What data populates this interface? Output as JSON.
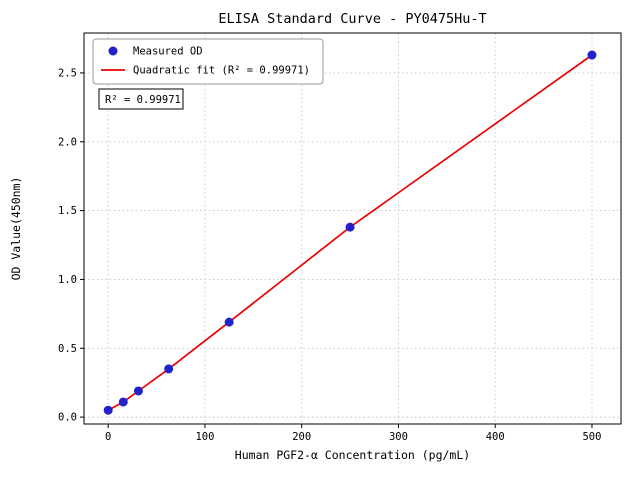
{
  "figure": {
    "name": "ELISA standard curve figure"
  },
  "chart_data": {
    "type": "scatter",
    "title": "ELISA Standard Curve - PY0475Hu-T",
    "xlabel": "Human PGF2-α Concentration (pg/mL)",
    "ylabel": "OD Value(450nm)",
    "xlim": [
      -25,
      530
    ],
    "ylim": [
      -0.05,
      2.79
    ],
    "xticks": [
      {
        "v": 0,
        "label": "0"
      },
      {
        "v": 100,
        "label": "100"
      },
      {
        "v": 200,
        "label": "200"
      },
      {
        "v": 300,
        "label": "300"
      },
      {
        "v": 400,
        "label": "400"
      },
      {
        "v": 500,
        "label": "500"
      }
    ],
    "yticks": [
      {
        "v": 0.0,
        "label": "0.0"
      },
      {
        "v": 0.5,
        "label": "0.5"
      },
      {
        "v": 1.0,
        "label": "1.0"
      },
      {
        "v": 1.5,
        "label": "1.5"
      },
      {
        "v": 2.0,
        "label": "2.0"
      },
      {
        "v": 2.5,
        "label": "2.5"
      }
    ],
    "points": {
      "x": [
        0,
        15.6,
        31.25,
        62.5,
        125,
        250,
        500
      ],
      "y": [
        0.05,
        0.11,
        0.19,
        0.35,
        0.69,
        1.38,
        2.63
      ]
    },
    "fit": {
      "kind": "quadratic",
      "r_squared": "0.99971"
    },
    "legend": [
      {
        "label": "Measured OD",
        "marker": "dot"
      },
      {
        "label": "Quadratic fit (R² = 0.99971)",
        "marker": "line"
      }
    ],
    "annotation": "R² = 0.99971",
    "grid": true,
    "legend_position": "upper-left",
    "colors": {
      "points": "#2222cc",
      "line": "#ee0000",
      "grid": "#c4c4c4",
      "axis": "#000000",
      "legend_border": "#999999",
      "annotation_border": "#000000",
      "background": "#ffffff"
    }
  }
}
